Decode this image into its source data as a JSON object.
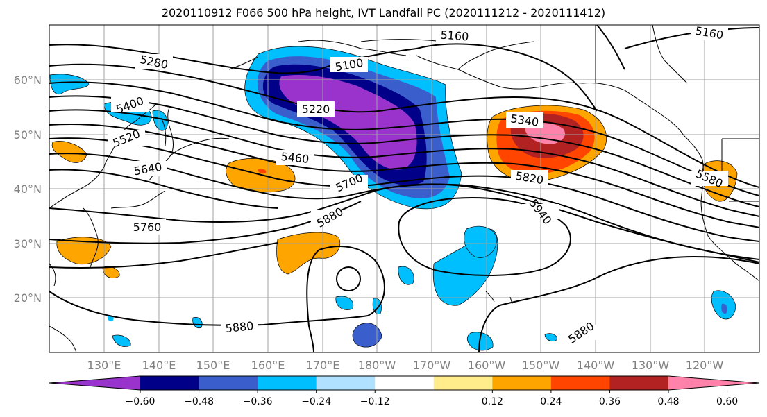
{
  "title": "2020110912 F066 500 hPa height, IVT Landfall PC (2020111212 - 2020111412)",
  "map": {
    "lat_labels": [
      "60°N",
      "50°N",
      "40°N",
      "30°N",
      "20°N"
    ],
    "lon_labels": [
      "130°E",
      "140°E",
      "150°E",
      "160°E",
      "170°E",
      "180°W",
      "170°W",
      "160°W",
      "150°W",
      "140°W",
      "130°W",
      "120°W"
    ],
    "contour_labels": [
      "5160",
      "5160",
      "5100",
      "5280",
      "5400",
      "5220",
      "5520",
      "5340",
      "5460",
      "5640",
      "5700",
      "5820",
      "5580",
      "5760",
      "5880",
      "5940",
      "5880",
      "5880"
    ]
  },
  "colorbar": {
    "tick_labels": [
      "−0.60",
      "−0.48",
      "−0.36",
      "−0.24",
      "−0.12",
      "0.12",
      "0.24",
      "0.36",
      "0.48",
      "0.60"
    ],
    "colors": [
      "#9933cc",
      "#000088",
      "#3a5fcd",
      "#00bfff",
      "#b0e2ff",
      "#ffffff",
      "#ffec8b",
      "#ffa500",
      "#ff4500",
      "#b22222",
      "#ff82ab"
    ]
  }
}
